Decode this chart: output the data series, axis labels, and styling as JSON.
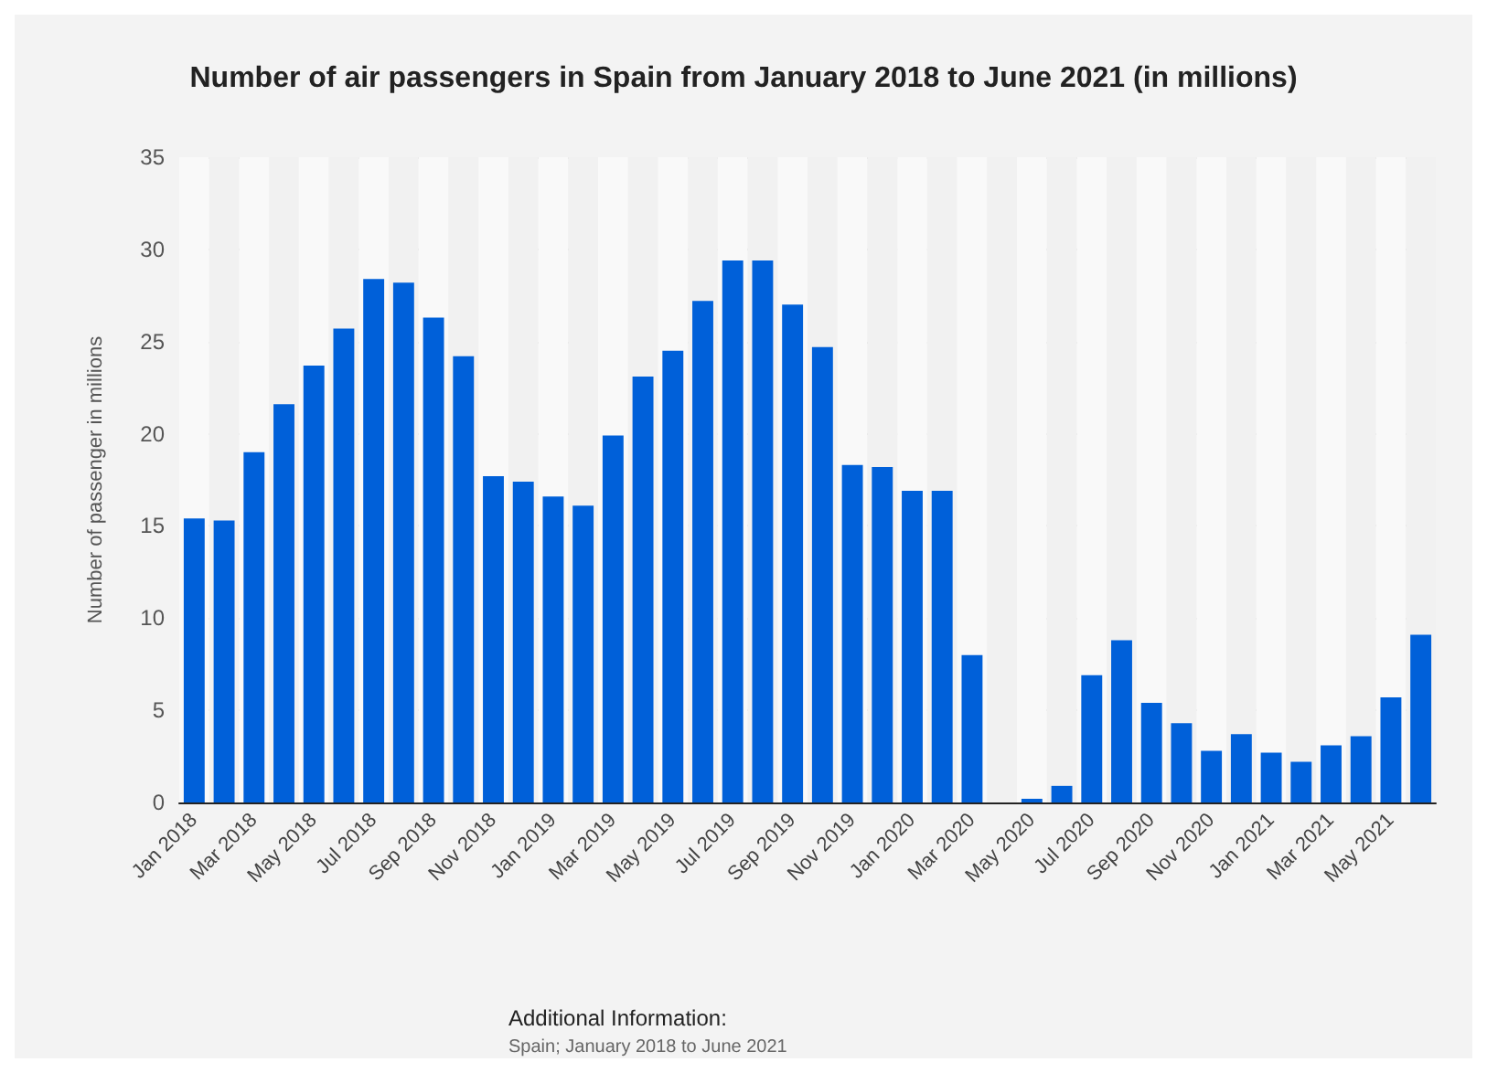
{
  "chart_data": {
    "type": "bar",
    "title": "Number of air passengers in Spain from January 2018 to June 2021 (in millions)",
    "ylabel": "Number of passenger in millions",
    "categories": [
      "Jan 2018",
      null,
      "Mar 2018",
      null,
      "May 2018",
      null,
      "Jul 2018",
      null,
      "Sep 2018",
      null,
      "Nov 2018",
      null,
      "Jan 2019",
      null,
      "Mar 2019",
      null,
      "May 2019",
      null,
      "Jul 2019",
      null,
      "Sep 2019",
      null,
      "Nov 2019",
      null,
      "Jan 2020",
      null,
      "Mar 2020",
      null,
      "May 2020",
      null,
      "Jul 2020",
      null,
      "Sep 2020",
      null,
      "Nov 2020",
      null,
      "Jan 2021",
      null,
      "Mar 2021",
      null,
      "May 2021",
      null
    ],
    "values": [
      15.4,
      15.3,
      19.0,
      21.6,
      23.7,
      25.7,
      28.4,
      28.2,
      26.3,
      24.2,
      17.7,
      17.4,
      16.6,
      16.1,
      19.9,
      23.1,
      24.5,
      27.2,
      29.4,
      29.4,
      27.0,
      24.7,
      18.3,
      18.2,
      16.9,
      16.9,
      8.0,
      0,
      0.2,
      0.9,
      6.9,
      8.8,
      5.4,
      4.3,
      2.8,
      3.7,
      2.7,
      2.2,
      3.1,
      3.6,
      5.7,
      9.1
    ],
    "color": "#0060d9",
    "ylim": [
      0,
      35
    ],
    "yticks": [
      0,
      5,
      10,
      15,
      20,
      25,
      30,
      35
    ],
    "grid": "y",
    "annotations": [
      "Additional Information:",
      "Spain; January 2018 to June 2021"
    ]
  }
}
